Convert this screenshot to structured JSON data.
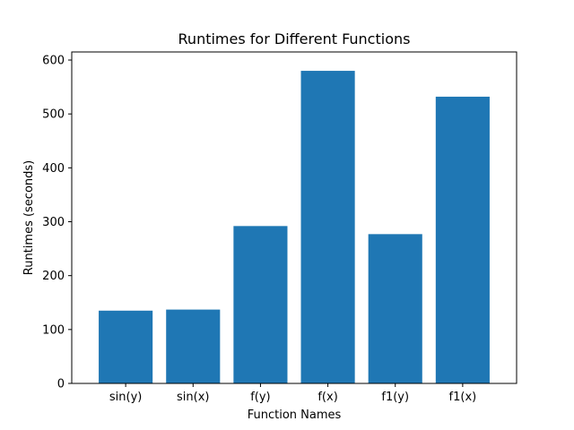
{
  "chart_data": {
    "type": "bar",
    "title": "Runtimes for Different Functions",
    "xlabel": "Function Names",
    "ylabel": "Runtimes (seconds)",
    "categories": [
      "sin(y)",
      "sin(x)",
      "f(y)",
      "f(x)",
      "f1(y)",
      "f1(x)"
    ],
    "values": [
      135,
      137,
      292,
      580,
      277,
      532
    ],
    "ylim": [
      0,
      615
    ],
    "yticks": [
      0,
      100,
      200,
      300,
      400,
      500,
      600
    ],
    "grid": false,
    "legend": null,
    "bar_color": "#1f77b4"
  }
}
